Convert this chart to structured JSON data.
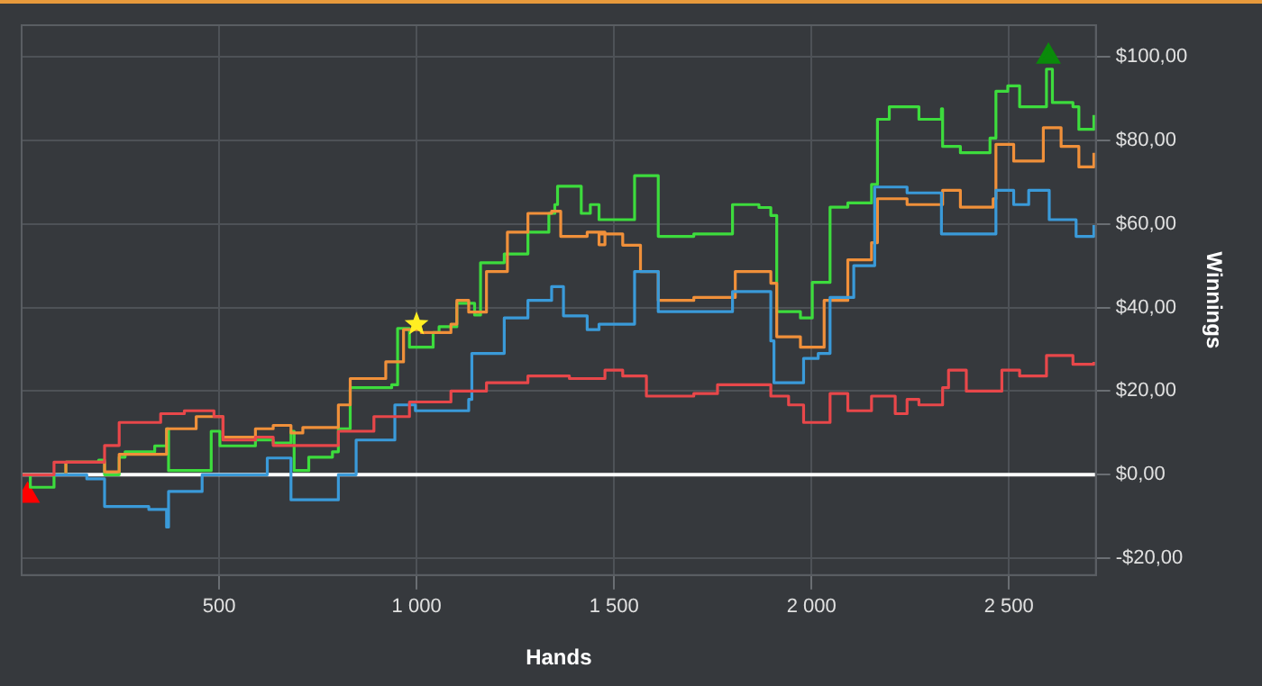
{
  "chart_data": {
    "type": "step",
    "xlabel": "Hands",
    "ylabel": "Winnings",
    "xlim": [
      0,
      2720
    ],
    "ylim": [
      -24,
      107.5
    ],
    "xticks": [
      500,
      {
        "value": 1000,
        "label": "1 000"
      },
      {
        "value": 1500,
        "label": "1 500"
      },
      {
        "value": 2000,
        "label": "2 000"
      },
      {
        "value": 2500,
        "label": "2 500"
      }
    ],
    "yticks": [
      {
        "value": -20,
        "label": "-$20,00"
      },
      {
        "value": 0,
        "label": "$0,00"
      },
      {
        "value": 20,
        "label": "$20,00"
      },
      {
        "value": 40,
        "label": "$40,00"
      },
      {
        "value": 60,
        "label": "$60,00"
      },
      {
        "value": 80,
        "label": "$80,00"
      },
      {
        "value": 100,
        "label": "$100,00"
      }
    ],
    "grid": true,
    "legend": false,
    "line_style": "solid",
    "marker": "none",
    "ref_lines": [
      {
        "axis": "y",
        "value": 0,
        "color": "#ffffff"
      }
    ],
    "series": [
      {
        "color": "#e8474a",
        "x": [
          0,
          82,
          210,
          247,
          352,
          412,
          487,
          510,
          592,
          637,
          727,
          802,
          892,
          982,
          1087,
          1177,
          1282,
          1387,
          1477,
          1522,
          1582,
          1702,
          1762,
          1897,
          1942,
          1980,
          2047,
          2092,
          2152,
          2212,
          2242,
          2272,
          2332,
          2347,
          2392,
          2482,
          2527,
          2595,
          2662,
          2715
        ],
        "values": [
          0,
          3,
          7,
          12.5,
          14.6,
          15.3,
          13.9,
          8.3,
          9,
          7,
          7,
          10.4,
          13.9,
          17.4,
          20,
          22,
          23.6,
          23,
          25,
          23.6,
          18.8,
          19.4,
          21.5,
          18.8,
          16.7,
          12.5,
          19.4,
          15.3,
          18.8,
          14.6,
          18,
          16.7,
          20.8,
          25,
          20,
          25,
          23.6,
          28.5,
          26.4,
          27
        ]
      },
      {
        "color": "#3a9ad9",
        "x": [
          0,
          165,
          210,
          322,
          367,
          372,
          457,
          622,
          682,
          802,
          847,
          945,
          997,
          1132,
          1140,
          1222,
          1282,
          1342,
          1372,
          1432,
          1462,
          1552,
          1612,
          1717,
          1800,
          1897,
          1905,
          1980,
          2017,
          2047,
          2107,
          2160,
          2242,
          2329,
          2467,
          2512,
          2550,
          2602,
          2670,
          2715
        ],
        "values": [
          0,
          -1,
          -7.6,
          -8.3,
          -12.5,
          -4,
          0,
          4,
          -6,
          0,
          8.3,
          16.7,
          15.3,
          18,
          29,
          37.5,
          41.7,
          45,
          38,
          34.7,
          36,
          48.6,
          39,
          39,
          43.8,
          32,
          22,
          27.8,
          29,
          42.4,
          50,
          68.8,
          67.4,
          57.6,
          68,
          64.6,
          68,
          61,
          57,
          59.7
        ]
      },
      {
        "color": "#f0903a",
        "x": [
          0,
          112,
          210,
          247,
          367,
          442,
          510,
          592,
          637,
          682,
          712,
          802,
          832,
          922,
          967,
          1012,
          1087,
          1102,
          1132,
          1177,
          1222,
          1230,
          1282,
          1342,
          1365,
          1432,
          1477,
          1462,
          1522,
          1567,
          1612,
          1702,
          1807,
          1897,
          1912,
          1972,
          2032,
          2092,
          2152,
          2167,
          2242,
          2332,
          2377,
          2460,
          2467,
          2512,
          2587,
          2632,
          2677,
          2715
        ],
        "values": [
          0,
          3,
          0.7,
          4.9,
          11,
          13.9,
          9,
          11,
          11.8,
          10,
          11.3,
          16.7,
          23,
          27,
          34.7,
          34,
          36,
          41.7,
          38.9,
          48.6,
          48.6,
          58,
          62.5,
          63,
          57,
          58,
          55,
          57.6,
          54.9,
          48.6,
          41.7,
          42.4,
          48.6,
          45.8,
          33,
          30.5,
          41.7,
          51.4,
          55.5,
          66,
          64.6,
          68,
          64,
          66,
          79,
          75,
          83,
          78.5,
          73.6,
          77
        ]
      },
      {
        "color": "#3ddc3d",
        "x": [
          0,
          22,
          82,
          112,
          195,
          210,
          247,
          262,
          337,
          367,
          372,
          480,
          502,
          592,
          637,
          682,
          690,
          727,
          787,
          802,
          832,
          937,
          952,
          982,
          1042,
          1057,
          1102,
          1147,
          1162,
          1222,
          1282,
          1335,
          1350,
          1357,
          1417,
          1440,
          1462,
          1552,
          1612,
          1702,
          1800,
          1867,
          1897,
          1912,
          1972,
          2002,
          2047,
          2092,
          2152,
          2167,
          2197,
          2272,
          2329,
          2332,
          2377,
          2452,
          2467,
          2497,
          2527,
          2595,
          2610,
          2662,
          2677,
          2715
        ],
        "values": [
          0,
          -3,
          0,
          3,
          3.5,
          0,
          4.2,
          5.5,
          6.9,
          11,
          1,
          10.4,
          6.9,
          8.3,
          7.6,
          10.4,
          1,
          4.2,
          5.5,
          11,
          20.8,
          21.5,
          35,
          30.5,
          34,
          35.4,
          41,
          38.2,
          50.7,
          52.8,
          58,
          62.5,
          64.6,
          69,
          62.5,
          64.6,
          61,
          71.5,
          57,
          57.6,
          64.6,
          63.9,
          62,
          39,
          37.5,
          46,
          64,
          65,
          69.4,
          85,
          88,
          85,
          87.5,
          78.5,
          77,
          80.5,
          91.7,
          93,
          88,
          97,
          89,
          88,
          82.6,
          86
        ]
      },
      {
        "type": "scatter",
        "color": "#ff0000",
        "marker": "triangle",
        "x": [
          15
        ],
        "values": [
          -5
        ]
      },
      {
        "type": "scatter",
        "color": "#ffee22",
        "marker": "star",
        "x": [
          1000
        ],
        "values": [
          36
        ]
      },
      {
        "type": "scatter",
        "color": "#0a8a0a",
        "marker": "triangle",
        "x": [
          2600
        ],
        "values": [
          100
        ]
      }
    ]
  }
}
